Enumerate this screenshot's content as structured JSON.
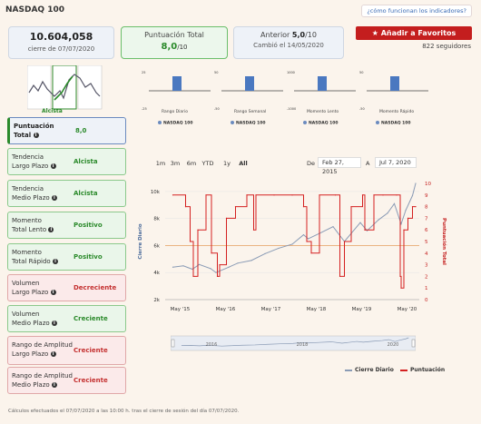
{
  "header": {
    "title": "NASDAQ 100",
    "help_link": "¿cómo funcionan los indicadores?"
  },
  "cards": {
    "price": {
      "value": "10.604,058",
      "caption": "cierre de 07/07/2020"
    },
    "score": {
      "label": "Puntuación Total",
      "value": "8,0",
      "of": "/10"
    },
    "previous": {
      "label": "Anterior",
      "value": "5,0",
      "of": "/10",
      "caption": "Cambió el 14/05/2020"
    }
  },
  "favorites": {
    "button_label": "Añadir a Favoritos",
    "followers": "822 seguidores"
  },
  "gauge": {
    "label": "Alcista"
  },
  "mini_charts": [
    {
      "label": "Rango Diario",
      "legend": "NASDAQ 100",
      "top_tick": "25",
      "bottom_tick": "-25"
    },
    {
      "label": "Rango Semanal",
      "legend": "NASDAQ 100",
      "top_tick": "50",
      "bottom_tick": "-50"
    },
    {
      "label": "Momento Lento",
      "legend": "NASDAQ 100",
      "top_tick": "1000",
      "bottom_tick": "-1000"
    },
    {
      "label": "Momento Rápido",
      "legend": "NASDAQ 100",
      "top_tick": "50",
      "bottom_tick": "-50"
    }
  ],
  "indicators": [
    {
      "l1": "Puntuación",
      "l2": "Total",
      "state": "8,0",
      "kind": "total"
    },
    {
      "l1": "Tendencia",
      "l2": "Largo Plazo",
      "state": "Alcista",
      "kind": "green"
    },
    {
      "l1": "Tendencia",
      "l2": "Medio Plazo",
      "state": "Alcista",
      "kind": "green"
    },
    {
      "l1": "Momento",
      "l2": "Total Lento",
      "state": "Positivo",
      "kind": "green"
    },
    {
      "l1": "Momento",
      "l2": "Total Rápido",
      "state": "Positivo",
      "kind": "green"
    },
    {
      "l1": "Volumen",
      "l2": "Largo Plazo",
      "state": "Decreciente",
      "kind": "red"
    },
    {
      "l1": "Volumen",
      "l2": "Medio Plazo",
      "state": "Creciente",
      "kind": "green"
    },
    {
      "l1": "Rango de Amplitud",
      "l2": "Largo Plazo",
      "state": "Creciente",
      "kind": "red"
    },
    {
      "l1": "Rango de Amplitud",
      "l2": "Medio Plazo",
      "state": "Creciente",
      "kind": "red"
    }
  ],
  "range_selector": {
    "buttons": [
      "1m",
      "3m",
      "6m",
      "YTD",
      "1y",
      "All"
    ],
    "active": "All",
    "from_label": "De",
    "from_value": "Feb 27, 2015",
    "to_label": "A",
    "to_value": "Jul 7, 2020"
  },
  "navigator_years": [
    "2016",
    "2018",
    "2020"
  ],
  "legend": {
    "price": "Cierre Diario",
    "score": "Puntuación"
  },
  "footnote": "Cálculos efectuados el 07/07/2020 a las 10:00 h. tras el cierre de sesión del día 07/07/2020.",
  "colors": {
    "price_line": "#8a9bb5",
    "score_line": "#d42020",
    "accent_red": "#c41e1e",
    "accent_green": "#2b8a2b",
    "mini_bar": "#4a78c0"
  },
  "chart_data": {
    "type": "line",
    "xlabel": "",
    "ylabel": "Cierre Diario",
    "y2label": "Puntuación Total",
    "x_ticks": [
      "May '15",
      "May '16",
      "May '17",
      "May '18",
      "May '19",
      "May '20"
    ],
    "y_ticks": [
      "2k",
      "4k",
      "6k",
      "8k",
      "10k"
    ],
    "y2_ticks": [
      "0",
      "1",
      "2",
      "3",
      "4",
      "5",
      "6",
      "7",
      "8",
      "9",
      "10"
    ],
    "ylim": [
      2000,
      10600
    ],
    "y2lim": [
      0,
      10
    ],
    "reference_line": {
      "axis": "y",
      "value": 6000
    },
    "series": [
      {
        "name": "Cierre Diario",
        "axis": "left",
        "x": [
          2015.17,
          2015.4,
          2015.6,
          2015.75,
          2016.0,
          2016.12,
          2016.4,
          2016.6,
          2016.9,
          2017.2,
          2017.5,
          2017.8,
          2018.05,
          2018.15,
          2018.4,
          2018.7,
          2018.95,
          2019.1,
          2019.3,
          2019.45,
          2019.7,
          2019.9,
          2020.05,
          2020.2,
          2020.3,
          2020.45,
          2020.52
        ],
        "y": [
          4400,
          4500,
          4250,
          4600,
          4300,
          4000,
          4400,
          4700,
          4900,
          5400,
          5800,
          6100,
          6800,
          6500,
          6900,
          7400,
          6300,
          6900,
          7700,
          7100,
          7900,
          8400,
          9100,
          7600,
          8600,
          9700,
          10604
        ]
      },
      {
        "name": "Puntuación",
        "axis": "right",
        "x": [
          2015.17,
          2015.45,
          2015.55,
          2015.62,
          2015.72,
          2015.9,
          2016.02,
          2016.15,
          2016.2,
          2016.35,
          2016.55,
          2016.8,
          2016.95,
          2017.0,
          2017.4,
          2017.8,
          2018.05,
          2018.12,
          2018.22,
          2018.4,
          2018.75,
          2018.85,
          2018.95,
          2019.1,
          2019.35,
          2019.4,
          2019.6,
          2019.8,
          2020.1,
          2020.18,
          2020.2,
          2020.26,
          2020.35,
          2020.45,
          2020.52
        ],
        "y": [
          9,
          8,
          5,
          2,
          6,
          9,
          4,
          2,
          3,
          7,
          8,
          9,
          6,
          9,
          9,
          9,
          8,
          5,
          4,
          9,
          9,
          2,
          5,
          8,
          9,
          6,
          9,
          9,
          9,
          2,
          1,
          6,
          7,
          8,
          8
        ]
      }
    ]
  }
}
